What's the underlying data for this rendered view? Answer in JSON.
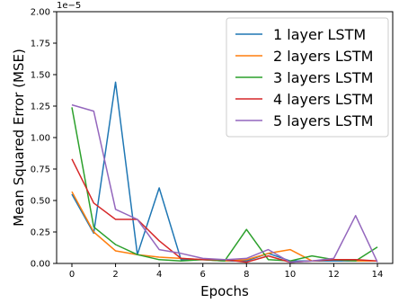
{
  "chart_data": {
    "type": "line",
    "title": "",
    "xlabel": "Epochs",
    "ylabel": "Mean Squared Error (MSE)",
    "y_offset_label": "1e−5",
    "x": [
      0,
      1,
      2,
      3,
      4,
      5,
      6,
      7,
      8,
      9,
      10,
      11,
      12,
      13,
      14
    ],
    "xlim": [
      -0.7,
      14.7
    ],
    "ylim": [
      0,
      2.0
    ],
    "x_ticks": [
      0,
      2,
      4,
      6,
      8,
      10,
      12,
      14
    ],
    "y_ticks": [
      0.0,
      0.25,
      0.5,
      0.75,
      1.0,
      1.25,
      1.5,
      1.75,
      2.0
    ],
    "y_tick_labels": [
      "0.00",
      "0.25",
      "0.50",
      "0.75",
      "1.00",
      "1.25",
      "1.50",
      "1.75",
      "2.00"
    ],
    "grid": false,
    "legend_position": "top-right",
    "series": [
      {
        "name": "1 layer LSTM",
        "color": "#1f77b4",
        "values": [
          0.55,
          0.24,
          1.44,
          0.07,
          0.6,
          0.03,
          0.03,
          0.02,
          0.02,
          0.08,
          0.02,
          0.02,
          0.02,
          0.02,
          0.02
        ]
      },
      {
        "name": "2 layers LSTM",
        "color": "#ff7f0e",
        "values": [
          0.57,
          0.25,
          0.1,
          0.07,
          0.05,
          0.04,
          0.03,
          0.02,
          0.03,
          0.08,
          0.11,
          0.02,
          0.03,
          0.02,
          0.02
        ]
      },
      {
        "name": "3 layers LSTM",
        "color": "#2ca02c",
        "values": [
          1.24,
          0.29,
          0.15,
          0.07,
          0.03,
          0.02,
          0.03,
          0.02,
          0.27,
          0.03,
          0.02,
          0.06,
          0.03,
          0.02,
          0.13
        ]
      },
      {
        "name": "4 layers LSTM",
        "color": "#d62728",
        "values": [
          0.83,
          0.48,
          0.35,
          0.35,
          0.18,
          0.04,
          0.03,
          0.03,
          0.01,
          0.06,
          0.01,
          0.02,
          0.03,
          0.03,
          0.02
        ]
      },
      {
        "name": "5 layers LSTM",
        "color": "#9467bd",
        "values": [
          1.26,
          1.21,
          0.43,
          0.35,
          0.11,
          0.08,
          0.04,
          0.03,
          0.04,
          0.11,
          0.01,
          0.02,
          0.04,
          0.38,
          0.01
        ]
      }
    ]
  }
}
